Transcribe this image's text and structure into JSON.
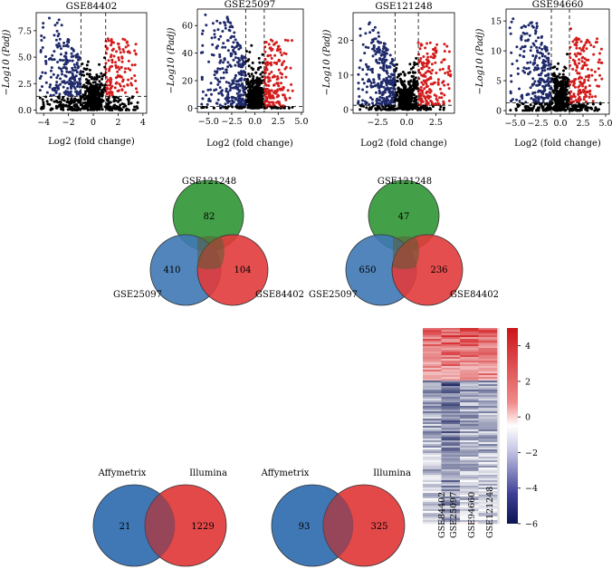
{
  "colors": {
    "down": "#1f2a6b",
    "up": "#d41c1c",
    "ns": "#000000",
    "venn_blue": "#3f78b5",
    "venn_red": "#e13b3b",
    "venn_green": "#3a9a3f",
    "heat_high": "#d7191c",
    "heat_low": "#0e1a5a",
    "heat_mid": "#ffffff"
  },
  "chart_data": [
    {
      "type": "scatter",
      "subtype": "volcano",
      "title": "GSE84402",
      "xlabel": "Log2 (fold change)",
      "ylabel": "−Log10 (Padj)",
      "xlim": [
        -4.6,
        4.3
      ],
      "ylim": [
        -0.3,
        9.2
      ],
      "xticks": [
        -4,
        -2,
        0,
        2,
        4
      ],
      "yticks": [
        0.0,
        2.5,
        5.0,
        7.5
      ],
      "xticklabels": [
        "−4",
        "−2",
        "0",
        "2",
        "4"
      ],
      "yticklabels": [
        "0.0",
        "2.5",
        "5.0",
        "7.5"
      ],
      "fc_cutoff": 1,
      "padj_line": 1.3,
      "ymax_data": 9.0,
      "xmin_data": -4.3,
      "xmax_data": 3.6
    },
    {
      "type": "scatter",
      "subtype": "volcano",
      "title": "GSE25097",
      "xlabel": "Log2 (fold change)",
      "ylabel": "−Log10 (Padj)",
      "xlim": [
        -6.2,
        5.2
      ],
      "ylim": [
        -3,
        72
      ],
      "xticks": [
        -5.0,
        -2.5,
        0.0,
        2.5,
        5.0
      ],
      "yticks": [
        0,
        20,
        40,
        60
      ],
      "xticklabels": [
        "−5.0",
        "−2.5",
        "0.0",
        "2.5",
        "5.0"
      ],
      "yticklabels": [
        "0",
        "20",
        "40",
        "60"
      ],
      "fc_cutoff": 1,
      "padj_line": 1.3,
      "ymax_data": 68,
      "xmin_data": -5.8,
      "xmax_data": 4.2
    },
    {
      "type": "scatter",
      "subtype": "volcano",
      "title": "GSE121248",
      "xlabel": "Log2 (fold change)",
      "ylabel": "−Log10 (Padj)",
      "xlim": [
        -4.6,
        4.1
      ],
      "ylim": [
        -1,
        28
      ],
      "xticks": [
        -2.5,
        0.0,
        2.5
      ],
      "yticks": [
        0,
        10,
        20
      ],
      "xticklabels": [
        "−2.5",
        "0.0",
        "2.5"
      ],
      "yticklabels": [
        "0",
        "10",
        "20"
      ],
      "fc_cutoff": 1,
      "padj_line": 1.3,
      "ymax_data": 26,
      "xmin_data": -4.2,
      "xmax_data": 3.8
    },
    {
      "type": "scatter",
      "subtype": "volcano",
      "title": "GSE94660",
      "xlabel": "Log2 (fold change)",
      "ylabel": "−Log10 (Padj)",
      "xlim": [
        -6.0,
        5.4
      ],
      "ylim": [
        -0.6,
        17
      ],
      "xticks": [
        -5.0,
        -2.5,
        0.0,
        2.5,
        5.0
      ],
      "yticks": [
        0,
        5,
        10,
        15
      ],
      "xticklabels": [
        "−5.0",
        "−2.5",
        "0.0",
        "2.5",
        "5.0"
      ],
      "yticklabels": [
        "0",
        "5",
        "10",
        "15"
      ],
      "fc_cutoff": 1,
      "padj_line": 1.3,
      "ymax_data": 16.2,
      "xmin_data": -5.6,
      "xmax_data": 4.6
    },
    {
      "type": "venn",
      "sets": [
        "GSE121248",
        "GSE25097",
        "GSE84402"
      ],
      "values": {
        "GSE121248_only": "82",
        "GSE25097_only": "410",
        "GSE84402_only": "104"
      }
    },
    {
      "type": "venn",
      "sets": [
        "GSE121248",
        "GSE25097",
        "GSE84402"
      ],
      "values": {
        "GSE121248_only": "47",
        "GSE25097_only": "650",
        "GSE84402_only": "236"
      }
    },
    {
      "type": "venn",
      "sets": [
        "Affymetrix",
        "Illumina"
      ],
      "values": {
        "Affymetrix_only": "21",
        "Illumina_only": "1229"
      }
    },
    {
      "type": "venn",
      "sets": [
        "Affymetrix",
        "Illumina"
      ],
      "values": {
        "Affymetrix_only": "93",
        "Illumina_only": "325"
      }
    },
    {
      "type": "heatmap",
      "columns": [
        "GSE84402",
        "GSE25097",
        "GSE94660",
        "GSE121248"
      ],
      "up_fraction": 0.27,
      "colorbar": {
        "min": -6,
        "max": 5,
        "ticks": [
          4,
          2,
          0,
          -2,
          -4,
          -6
        ],
        "ticklabels": [
          "4",
          "2",
          "0",
          "−2",
          "−4",
          "−6"
        ]
      }
    }
  ]
}
